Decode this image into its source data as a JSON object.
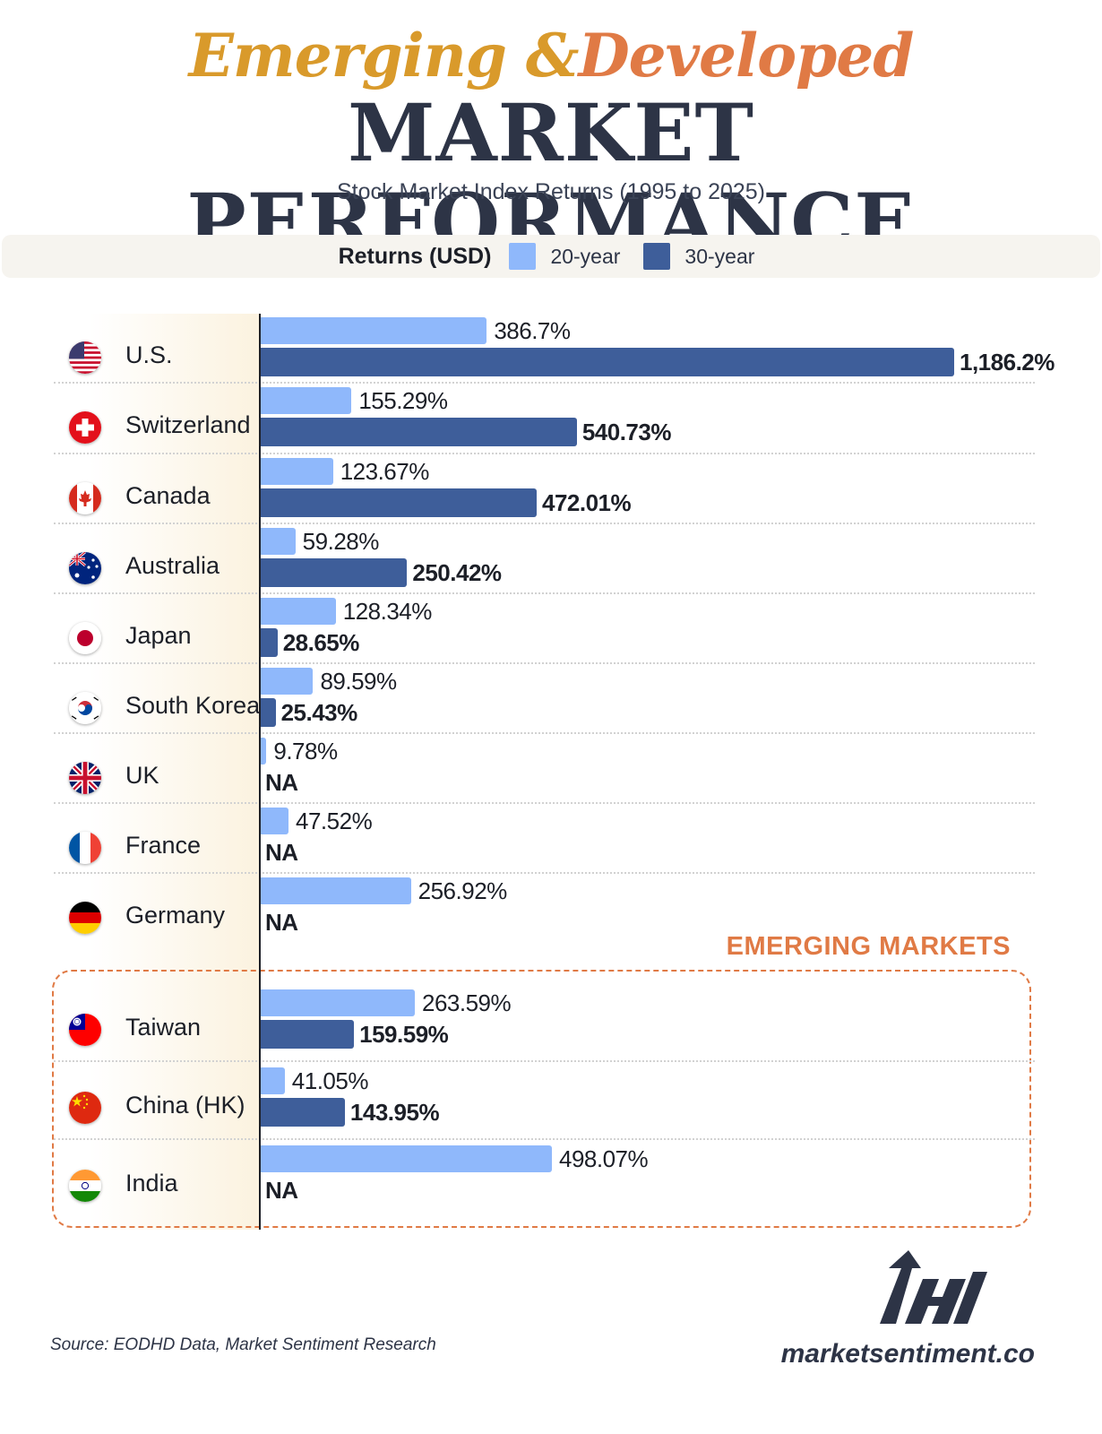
{
  "title": {
    "line1_part1": "Emerging &",
    "line1_part2": "Developed",
    "line2": "MARKET PERFORMANCE"
  },
  "subtitle": "Stock Market Index Returns (1995 to 2025)",
  "legend": {
    "title": "Returns (USD)",
    "items": [
      {
        "label": "20-year",
        "color": "#8fb8fb"
      },
      {
        "label": "30-year",
        "color": "#3e5e9a"
      }
    ]
  },
  "emerging_label": "EMERGING MARKETS",
  "source": "Source: EODHD Data, Market Sentiment Research",
  "site": "marketsentiment.co",
  "colors": {
    "bar20": "#8fb8fb",
    "bar30": "#3e5e9a",
    "accent": "#e07a45",
    "gold": "#d99a2b",
    "navy": "#2d3446"
  },
  "chart_data": {
    "type": "bar",
    "orientation": "horizontal",
    "title": "Emerging & Developed MARKET PERFORMANCE",
    "subtitle": "Stock Market Index Returns (1995 to 2025)",
    "categories": [
      "U.S.",
      "Switzerland",
      "Canada",
      "Australia",
      "Japan",
      "South Korea",
      "UK",
      "France",
      "Germany",
      "Taiwan",
      "China (HK)",
      "India"
    ],
    "series": [
      {
        "name": "20-year",
        "values": [
          386.7,
          155.29,
          123.67,
          59.28,
          128.34,
          89.59,
          9.78,
          47.52,
          256.92,
          263.59,
          41.05,
          498.07
        ],
        "labels": [
          "386.7%",
          "155.29%",
          "123.67%",
          "59.28%",
          "128.34%",
          "89.59%",
          "9.78%",
          "47.52%",
          "256.92%",
          "263.59%",
          "41.05%",
          "498.07%"
        ]
      },
      {
        "name": "30-year",
        "values": [
          1186.2,
          540.73,
          472.01,
          250.42,
          28.65,
          25.43,
          null,
          null,
          null,
          159.59,
          143.95,
          null
        ],
        "labels": [
          "1,186.2%",
          "540.73%",
          "472.01%",
          "250.42%",
          "28.65%",
          "25.43%",
          "NA",
          "NA",
          "NA",
          "159.59%",
          "143.95%",
          "NA"
        ]
      }
    ],
    "groups": {
      "developed": [
        "U.S.",
        "Switzerland",
        "Canada",
        "Australia",
        "Japan",
        "South Korea",
        "UK",
        "France",
        "Germany"
      ],
      "emerging": [
        "Taiwan",
        "China (HK)",
        "India"
      ]
    },
    "legend_title": "Returns (USD)",
    "legend_position": "top",
    "xlim": [
      0,
      1186.2
    ],
    "grid": false
  }
}
